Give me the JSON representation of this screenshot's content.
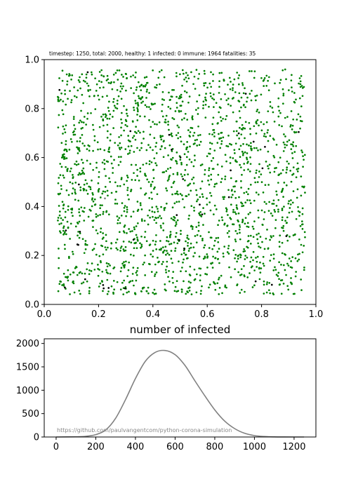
{
  "chart_data": [
    {
      "type": "scatter",
      "title": "timestep: 1250, total: 2000, healthy: 1 infected: 0 immune: 1964 fatalities: 35",
      "xlim": [
        0,
        1
      ],
      "ylim": [
        0,
        1
      ],
      "x_ticks": [
        "0.0",
        "0.2",
        "0.4",
        "0.6",
        "0.8",
        "1.0"
      ],
      "y_ticks": [
        "0.0",
        "0.2",
        "0.4",
        "0.6",
        "0.8",
        "1.0"
      ],
      "grid": false,
      "population": {
        "total": 2000,
        "healthy": 1,
        "infected": 0,
        "immune": 1964,
        "fatalities": 35,
        "x_range": [
          0.05,
          0.96
        ],
        "y_range": [
          0.04,
          0.96
        ]
      },
      "colors": {
        "immune": "#008000",
        "fatalities": "#000000",
        "healthy": "#808080"
      }
    },
    {
      "type": "line",
      "title": "number of infected",
      "xlim": [
        -60,
        1310
      ],
      "ylim": [
        0,
        2100
      ],
      "x_ticks": [
        0,
        200,
        400,
        600,
        800,
        1000,
        1200
      ],
      "y_ticks": [
        0,
        500,
        1000,
        1500,
        2000
      ],
      "grid": false,
      "series": [
        {
          "color": "#808080",
          "x": [
            0,
            100,
            150,
            200,
            250,
            300,
            350,
            400,
            450,
            500,
            550,
            600,
            650,
            700,
            750,
            800,
            850,
            900,
            950,
            1000,
            1050,
            1100,
            1150,
            1200,
            1250
          ],
          "y": [
            0,
            5,
            15,
            50,
            150,
            400,
            800,
            1250,
            1620,
            1810,
            1850,
            1760,
            1530,
            1200,
            880,
            580,
            340,
            180,
            80,
            30,
            10,
            3,
            1,
            0,
            0
          ]
        }
      ],
      "annotation": "https://github.com/paulvangentcom/python-corona-simulation"
    }
  ]
}
